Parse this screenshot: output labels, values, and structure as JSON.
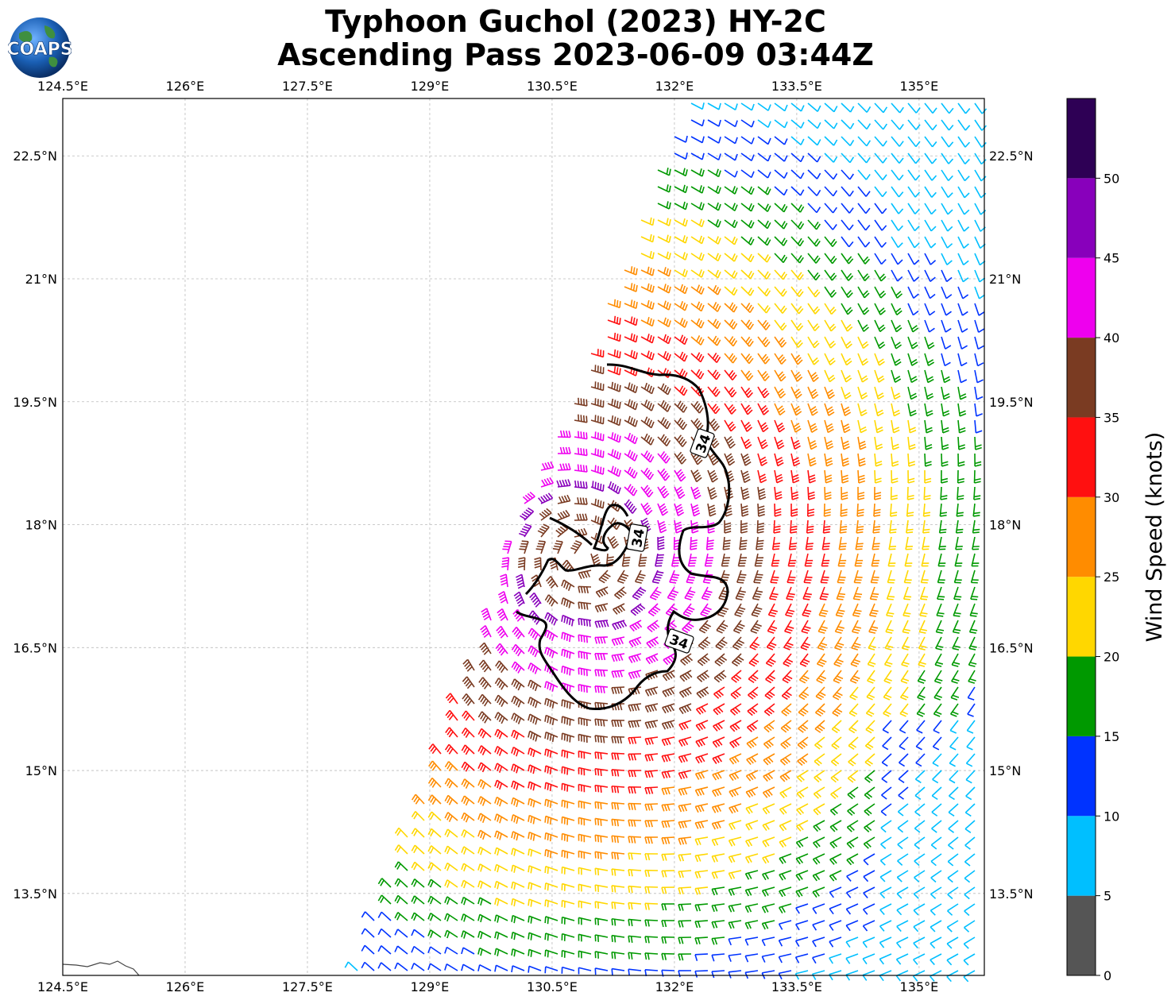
{
  "title": {
    "line1": "Typhoon Guchol (2023) HY-2C",
    "line2": "Ascending Pass 2023-06-09 03:44Z"
  },
  "logo": {
    "text": "COAPS"
  },
  "map": {
    "lon_range": [
      124.5,
      135.8
    ],
    "lat_range": [
      12.5,
      23.2
    ],
    "lon_ticks": [
      "124.5°E",
      "126°E",
      "127.5°E",
      "129°E",
      "130.5°E",
      "132°E",
      "133.5°E",
      "135°E"
    ],
    "lon_values": [
      124.5,
      126,
      127.5,
      129,
      130.5,
      132,
      133.5,
      135
    ],
    "lat_ticks": [
      "13.5°N",
      "15°N",
      "16.5°N",
      "18°N",
      "19.5°N",
      "21°N",
      "22.5°N"
    ],
    "lat_values": [
      13.5,
      15,
      16.5,
      18,
      19.5,
      21,
      22.5
    ],
    "gridlines": true,
    "contour_label": "34",
    "contour_level_knots": 34,
    "contour_color": "#000000"
  },
  "colorbar": {
    "label": "Wind Speed (knots)",
    "ticks": [
      "0",
      "5",
      "10",
      "15",
      "20",
      "25",
      "30",
      "35",
      "40",
      "45",
      "50"
    ],
    "colors": [
      "#555555",
      "#00bfff",
      "#0033ff",
      "#009900",
      "#ffd700",
      "#ff8c00",
      "#ff1010",
      "#7a3b22",
      "#ee00ee",
      "#8800bb",
      "#2e0055"
    ],
    "bounds": [
      0,
      55
    ]
  },
  "chart_data": {
    "type": "wind-barbs",
    "title": "Typhoon Guchol (2023) HY-2C",
    "subtitle": "Ascending Pass 2023-06-09 03:44Z",
    "storm_center": {
      "lon": 130.9,
      "lat": 17.6
    },
    "speed_units": "knots",
    "max_speed_approx": 48,
    "contour_levels": [
      34
    ]
  }
}
